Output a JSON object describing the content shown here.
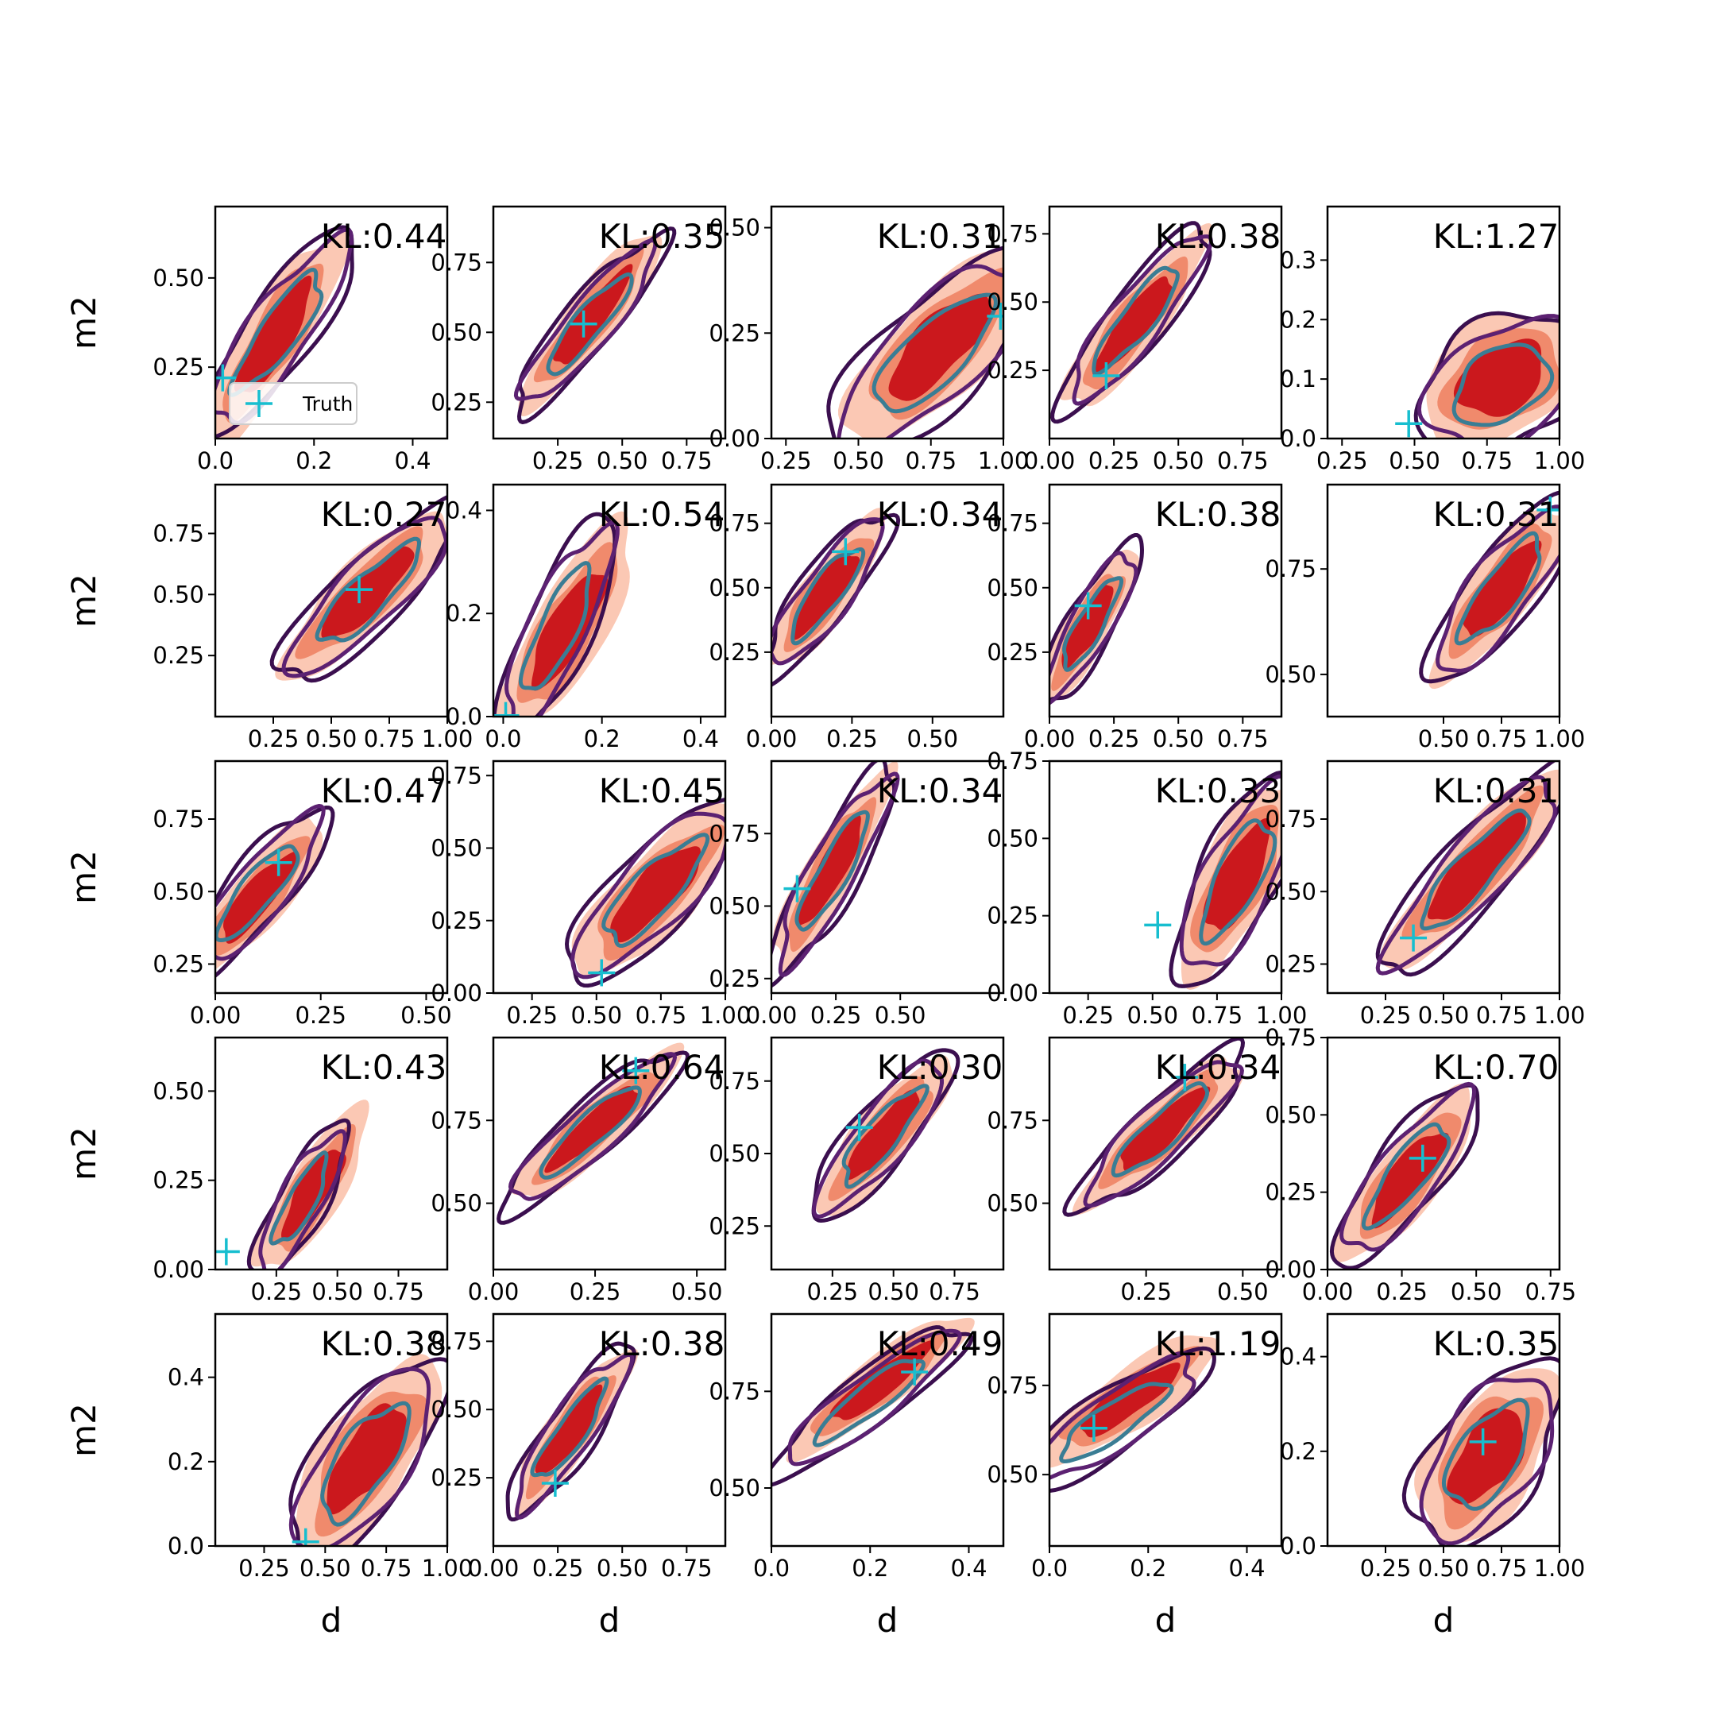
{
  "chart_data": {
    "type": "contour-grid",
    "rows": 5,
    "cols": 5,
    "xlabel": "d",
    "ylabel": "m2",
    "legend": {
      "label": "Truth",
      "placement": "lower-left of first panel"
    },
    "colors": {
      "filled_outer": "#fbc8b4",
      "filled_mid": "#f08a6c",
      "filled_inner": "#cb181d",
      "line_outer": "#3b0f4f",
      "line_mid": "#5c2172",
      "line_inner": "#3a7d94",
      "truth_marker": "#17becf"
    },
    "panels": [
      {
        "kl": "KL:0.44",
        "xlim": [
          0,
          0.47
        ],
        "ylim": [
          0.05,
          0.7
        ],
        "xticks": [
          "0.0",
          "0.2",
          "0.4"
        ],
        "yticks": [
          "0.25",
          "0.50"
        ],
        "truth": [
          0.015,
          0.22
        ],
        "density": {
          "c": [
            0.12,
            0.33
          ],
          "sx": 0.06,
          "sy": 0.13,
          "rho": 0.85
        },
        "model": {
          "c": [
            0.13,
            0.35
          ],
          "sx": 0.065,
          "sy": 0.12,
          "rho": 0.85
        }
      },
      {
        "kl": "KL:0.35",
        "xlim": [
          0,
          0.9
        ],
        "ylim": [
          0.12,
          0.95
        ],
        "xticks": [
          "0.25",
          "0.50",
          "0.75"
        ],
        "yticks": [
          "0.25",
          "0.50",
          "0.75"
        ],
        "truth": [
          0.35,
          0.53
        ],
        "density": {
          "c": [
            0.38,
            0.55
          ],
          "sx": 0.12,
          "sy": 0.14,
          "rho": 0.9
        },
        "model": {
          "c": [
            0.37,
            0.53
          ],
          "sx": 0.12,
          "sy": 0.13,
          "rho": 0.9
        }
      },
      {
        "kl": "KL:0.31",
        "xlim": [
          0.2,
          1.0
        ],
        "ylim": [
          0.0,
          0.55
        ],
        "xticks": [
          "0.25",
          "0.50",
          "0.75",
          "1.00"
        ],
        "yticks": [
          "0.00",
          "0.25",
          "0.50"
        ],
        "truth": [
          0.99,
          0.29
        ],
        "density": {
          "c": [
            0.78,
            0.22
          ],
          "sx": 0.14,
          "sy": 0.1,
          "rho": 0.75
        },
        "model": {
          "c": [
            0.76,
            0.2
          ],
          "sx": 0.15,
          "sy": 0.1,
          "rho": 0.75
        }
      },
      {
        "kl": "KL:0.38",
        "xlim": [
          0,
          0.9
        ],
        "ylim": [
          0.0,
          0.85
        ],
        "xticks": [
          "0.00",
          "0.25",
          "0.50",
          "0.75"
        ],
        "yticks": [
          "0.25",
          "0.50",
          "0.75"
        ],
        "truth": [
          0.22,
          0.23
        ],
        "density": {
          "c": [
            0.33,
            0.42
          ],
          "sx": 0.12,
          "sy": 0.14,
          "rho": 0.88
        },
        "model": {
          "c": [
            0.34,
            0.44
          ],
          "sx": 0.12,
          "sy": 0.14,
          "rho": 0.88
        }
      },
      {
        "kl": "KL:1.27",
        "xlim": [
          0.2,
          1.0
        ],
        "ylim": [
          0.0,
          0.39
        ],
        "xticks": [
          "0.25",
          "0.50",
          "0.75",
          "1.00"
        ],
        "yticks": [
          "0.0",
          "0.1",
          "0.2",
          "0.3"
        ],
        "truth": [
          0.48,
          0.025
        ],
        "density": {
          "c": [
            0.8,
            0.1
          ],
          "sx": 0.12,
          "sy": 0.05,
          "rho": 0.35
        },
        "model": {
          "c": [
            0.8,
            0.09
          ],
          "sx": 0.12,
          "sy": 0.05,
          "rho": 0.35
        }
      },
      {
        "kl": "KL:0.27",
        "xlim": [
          0.0,
          1.0
        ],
        "ylim": [
          0.0,
          0.95
        ],
        "xticks": [
          "0.25",
          "0.50",
          "0.75",
          "1.00"
        ],
        "yticks": [
          "0.25",
          "0.50",
          "0.75"
        ],
        "truth": [
          0.62,
          0.52
        ],
        "density": {
          "c": [
            0.65,
            0.5
          ],
          "sx": 0.16,
          "sy": 0.15,
          "rho": 0.85
        },
        "model": {
          "c": [
            0.66,
            0.5
          ],
          "sx": 0.16,
          "sy": 0.15,
          "rho": 0.85
        }
      },
      {
        "kl": "KL:0.54",
        "xlim": [
          -0.02,
          0.45
        ],
        "ylim": [
          0.0,
          0.45
        ],
        "xticks": [
          "0.0",
          "0.2",
          "0.4"
        ],
        "yticks": [
          "0.0",
          "0.2",
          "0.4"
        ],
        "truth": [
          0.005,
          0.002
        ],
        "density": {
          "c": [
            0.13,
            0.17
          ],
          "sx": 0.06,
          "sy": 0.09,
          "rho": 0.8
        },
        "model": {
          "c": [
            0.11,
            0.17
          ],
          "sx": 0.05,
          "sy": 0.09,
          "rho": 0.8
        }
      },
      {
        "kl": "KL:0.34",
        "xlim": [
          0,
          0.72
        ],
        "ylim": [
          0.0,
          0.9
        ],
        "xticks": [
          "0.00",
          "0.25",
          "0.50"
        ],
        "yticks": [
          "0.25",
          "0.50",
          "0.75"
        ],
        "truth": [
          0.23,
          0.64
        ],
        "density": {
          "c": [
            0.17,
            0.48
          ],
          "sx": 0.08,
          "sy": 0.13,
          "rho": 0.85
        },
        "model": {
          "c": [
            0.17,
            0.48
          ],
          "sx": 0.08,
          "sy": 0.13,
          "rho": 0.85
        }
      },
      {
        "kl": "KL:0.38",
        "xlim": [
          0,
          0.9
        ],
        "ylim": [
          0.0,
          0.9
        ],
        "xticks": [
          "0.00",
          "0.25",
          "0.50",
          "0.75"
        ],
        "yticks": [
          "0.25",
          "0.50",
          "0.75"
        ],
        "truth": [
          0.15,
          0.43
        ],
        "density": {
          "c": [
            0.15,
            0.35
          ],
          "sx": 0.08,
          "sy": 0.13,
          "rho": 0.85
        },
        "model": {
          "c": [
            0.16,
            0.36
          ],
          "sx": 0.08,
          "sy": 0.13,
          "rho": 0.85
        }
      },
      {
        "kl": "KL:0.31",
        "xlim": [
          0.0,
          1.0
        ],
        "ylim": [
          0.4,
          0.95
        ],
        "xticks": [
          "0.50",
          "0.75",
          "1.00"
        ],
        "yticks": [
          "0.50",
          "0.75"
        ],
        "truth": [
          0.96,
          0.89
        ],
        "density": {
          "c": [
            0.75,
            0.7
          ],
          "sx": 0.13,
          "sy": 0.09,
          "rho": 0.82
        },
        "model": {
          "c": [
            0.75,
            0.7
          ],
          "sx": 0.13,
          "sy": 0.09,
          "rho": 0.82
        }
      },
      {
        "kl": "KL:0.47",
        "xlim": [
          0,
          0.55
        ],
        "ylim": [
          0.15,
          0.95
        ],
        "xticks": [
          "0.00",
          "0.25",
          "0.50"
        ],
        "yticks": [
          "0.25",
          "0.50",
          "0.75"
        ],
        "truth": [
          0.15,
          0.6
        ],
        "density": {
          "c": [
            0.1,
            0.48
          ],
          "sx": 0.07,
          "sy": 0.12,
          "rho": 0.85
        },
        "model": {
          "c": [
            0.1,
            0.5
          ],
          "sx": 0.07,
          "sy": 0.12,
          "rho": 0.85
        }
      },
      {
        "kl": "KL:0.45",
        "xlim": [
          0.1,
          1.0
        ],
        "ylim": [
          0.0,
          0.8
        ],
        "xticks": [
          "0.25",
          "0.50",
          "0.75",
          "1.00"
        ],
        "yticks": [
          "0.00",
          "0.25",
          "0.50",
          "0.75"
        ],
        "truth": [
          0.52,
          0.07
        ],
        "density": {
          "c": [
            0.73,
            0.35
          ],
          "sx": 0.14,
          "sy": 0.13,
          "rho": 0.8
        },
        "model": {
          "c": [
            0.72,
            0.35
          ],
          "sx": 0.14,
          "sy": 0.13,
          "rho": 0.8
        }
      },
      {
        "kl": "KL:0.34",
        "xlim": [
          0,
          0.9
        ],
        "ylim": [
          0.2,
          1.0
        ],
        "xticks": [
          "0.00",
          "0.25",
          "0.50"
        ],
        "yticks": [
          "0.25",
          "0.50",
          "0.75"
        ],
        "truth": [
          0.1,
          0.56
        ],
        "density": {
          "c": [
            0.23,
            0.62
          ],
          "sx": 0.1,
          "sy": 0.15,
          "rho": 0.88
        },
        "model": {
          "c": [
            0.24,
            0.62
          ],
          "sx": 0.1,
          "sy": 0.15,
          "rho": 0.88
        }
      },
      {
        "kl": "KL:0.33",
        "xlim": [
          0.1,
          1.0
        ],
        "ylim": [
          0.0,
          0.75
        ],
        "xticks": [
          "0.25",
          "0.50",
          "0.75",
          "1.00"
        ],
        "yticks": [
          "0.00",
          "0.25",
          "0.50",
          "0.75"
        ],
        "truth": [
          0.52,
          0.22
        ],
        "density": {
          "c": [
            0.83,
            0.37
          ],
          "sx": 0.1,
          "sy": 0.14,
          "rho": 0.72
        },
        "model": {
          "c": [
            0.83,
            0.37
          ],
          "sx": 0.1,
          "sy": 0.14,
          "rho": 0.72
        }
      },
      {
        "kl": "KL:0.31",
        "xlim": [
          0.0,
          1.0
        ],
        "ylim": [
          0.15,
          0.95
        ],
        "xticks": [
          "0.25",
          "0.50",
          "0.75",
          "1.00"
        ],
        "yticks": [
          "0.25",
          "0.50",
          "0.75"
        ],
        "truth": [
          0.37,
          0.34
        ],
        "density": {
          "c": [
            0.64,
            0.58
          ],
          "sx": 0.17,
          "sy": 0.15,
          "rho": 0.88
        },
        "model": {
          "c": [
            0.63,
            0.57
          ],
          "sx": 0.17,
          "sy": 0.15,
          "rho": 0.88
        }
      },
      {
        "kl": "KL:0.43",
        "xlim": [
          0.0,
          0.95
        ],
        "ylim": [
          0.0,
          0.65
        ],
        "xticks": [
          "0.25",
          "0.50",
          "0.75"
        ],
        "yticks": [
          "0.00",
          "0.25",
          "0.50"
        ],
        "truth": [
          0.045,
          0.05
        ],
        "density": {
          "c": [
            0.4,
            0.22
          ],
          "sx": 0.1,
          "sy": 0.1,
          "rho": 0.82
        },
        "model": {
          "c": [
            0.35,
            0.19
          ],
          "sx": 0.08,
          "sy": 0.09,
          "rho": 0.82
        }
      },
      {
        "kl": "KL:0.64",
        "xlim": [
          0,
          0.57
        ],
        "ylim": [
          0.3,
          1.0
        ],
        "xticks": [
          "0.00",
          "0.25",
          "0.50"
        ],
        "yticks": [
          "0.50",
          "0.75"
        ],
        "truth": [
          0.35,
          0.9
        ],
        "density": {
          "c": [
            0.25,
            0.73
          ],
          "sx": 0.09,
          "sy": 0.1,
          "rho": 0.9
        },
        "model": {
          "c": [
            0.24,
            0.72
          ],
          "sx": 0.09,
          "sy": 0.1,
          "rho": 0.9
        }
      },
      {
        "kl": "KL:0.30",
        "xlim": [
          0.0,
          0.95
        ],
        "ylim": [
          0.1,
          0.9
        ],
        "xticks": [
          "0.25",
          "0.50",
          "0.75"
        ],
        "yticks": [
          "0.25",
          "0.50",
          "0.75"
        ],
        "truth": [
          0.36,
          0.59
        ],
        "density": {
          "c": [
            0.46,
            0.56
          ],
          "sx": 0.12,
          "sy": 0.12,
          "rho": 0.85
        },
        "model": {
          "c": [
            0.45,
            0.56
          ],
          "sx": 0.12,
          "sy": 0.12,
          "rho": 0.85
        }
      },
      {
        "kl": "KL:0.34",
        "xlim": [
          0,
          0.6
        ],
        "ylim": [
          0.3,
          1.0
        ],
        "xticks": [
          "0.25",
          "0.50"
        ],
        "yticks": [
          "0.50",
          "0.75"
        ],
        "truth": [
          0.35,
          0.88
        ],
        "density": {
          "c": [
            0.29,
            0.72
          ],
          "sx": 0.09,
          "sy": 0.1,
          "rho": 0.88
        },
        "model": {
          "c": [
            0.29,
            0.72
          ],
          "sx": 0.09,
          "sy": 0.1,
          "rho": 0.88
        }
      },
      {
        "kl": "KL:0.70",
        "xlim": [
          0,
          0.78
        ],
        "ylim": [
          0.0,
          0.75
        ],
        "xticks": [
          "0.00",
          "0.25",
          "0.50",
          "0.75"
        ],
        "yticks": [
          "0.00",
          "0.25",
          "0.50",
          "0.75"
        ],
        "truth": [
          0.32,
          0.36
        ],
        "density": {
          "c": [
            0.27,
            0.3
          ],
          "sx": 0.1,
          "sy": 0.12,
          "rho": 0.82
        },
        "model": {
          "c": [
            0.27,
            0.31
          ],
          "sx": 0.1,
          "sy": 0.12,
          "rho": 0.82
        }
      },
      {
        "kl": "KL:0.38",
        "xlim": [
          0.05,
          1.0
        ],
        "ylim": [
          0.0,
          0.55
        ],
        "xticks": [
          "0.25",
          "0.50",
          "0.75",
          "1.00"
        ],
        "yticks": [
          "0.0",
          "0.2",
          "0.4"
        ],
        "truth": [
          0.42,
          0.01
        ],
        "density": {
          "c": [
            0.67,
            0.21
          ],
          "sx": 0.13,
          "sy": 0.1,
          "rho": 0.7
        },
        "model": {
          "c": [
            0.66,
            0.2
          ],
          "sx": 0.13,
          "sy": 0.1,
          "rho": 0.7
        }
      },
      {
        "kl": "KL:0.38",
        "xlim": [
          0,
          0.9
        ],
        "ylim": [
          0.0,
          0.85
        ],
        "xticks": [
          "0.00",
          "0.25",
          "0.50",
          "0.75"
        ],
        "yticks": [
          "0.25",
          "0.50",
          "0.75"
        ],
        "truth": [
          0.24,
          0.23
        ],
        "density": {
          "c": [
            0.3,
            0.42
          ],
          "sx": 0.1,
          "sy": 0.13,
          "rho": 0.88
        },
        "model": {
          "c": [
            0.3,
            0.42
          ],
          "sx": 0.1,
          "sy": 0.13,
          "rho": 0.88
        }
      },
      {
        "kl": "KL:0.49",
        "xlim": [
          0,
          0.47
        ],
        "ylim": [
          0.35,
          0.95
        ],
        "xticks": [
          "0.0",
          "0.2",
          "0.4"
        ],
        "yticks": [
          "0.50",
          "0.75"
        ],
        "truth": [
          0.29,
          0.8
        ],
        "density": {
          "c": [
            0.22,
            0.77
          ],
          "sx": 0.08,
          "sy": 0.08,
          "rho": 0.9
        },
        "model": {
          "c": [
            0.2,
            0.73
          ],
          "sx": 0.08,
          "sy": 0.08,
          "rho": 0.9
        }
      },
      {
        "kl": "KL:1.19",
        "xlim": [
          0,
          0.47
        ],
        "ylim": [
          0.3,
          0.95
        ],
        "xticks": [
          "0.0",
          "0.2",
          "0.4"
        ],
        "yticks": [
          "0.50",
          "0.75"
        ],
        "truth": [
          0.09,
          0.63
        ],
        "density": {
          "c": [
            0.16,
            0.71
          ],
          "sx": 0.08,
          "sy": 0.08,
          "rho": 0.85
        },
        "model": {
          "c": [
            0.13,
            0.65
          ],
          "sx": 0.08,
          "sy": 0.08,
          "rho": 0.85
        }
      },
      {
        "kl": "KL:0.35",
        "xlim": [
          0.0,
          1.0
        ],
        "ylim": [
          0.0,
          0.49
        ],
        "xticks": [
          "0.25",
          "0.50",
          "0.75",
          "1.00"
        ],
        "yticks": [
          "0.0",
          "0.2",
          "0.4"
        ],
        "truth": [
          0.67,
          0.22
        ],
        "density": {
          "c": [
            0.69,
            0.19
          ],
          "sx": 0.13,
          "sy": 0.08,
          "rho": 0.55
        },
        "model": {
          "c": [
            0.69,
            0.19
          ],
          "sx": 0.13,
          "sy": 0.08,
          "rho": 0.55
        }
      }
    ]
  }
}
